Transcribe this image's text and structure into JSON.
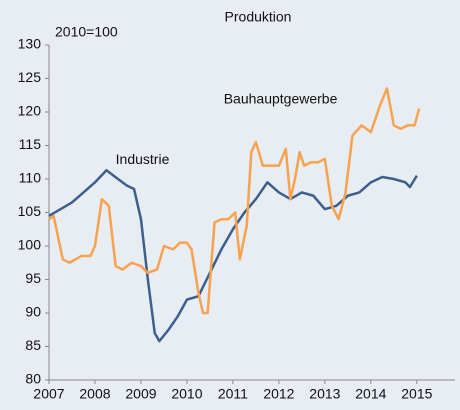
{
  "chart_data": {
    "type": "line",
    "title": "Produktion",
    "subtitle": "2010=100",
    "annotations": [
      {
        "text": "Industrie",
        "x": 2008.45,
        "y": 112.8
      },
      {
        "text": "Bauhauptgewerbe",
        "x": 2010.8,
        "y": 121.8
      }
    ],
    "xlim": [
      2007,
      2015.83
    ],
    "xticks": [
      2007,
      2008,
      2009,
      2010,
      2011,
      2012,
      2013,
      2014,
      2015
    ],
    "ylim": [
      80,
      130
    ],
    "yticks": [
      80,
      85,
      90,
      95,
      100,
      105,
      110,
      115,
      120,
      125,
      130
    ],
    "grid": false,
    "series": [
      {
        "name": "Industrie",
        "color": "#3d5f8c",
        "x": [
          2007,
          2007.25,
          2007.5,
          2007.75,
          2008,
          2008.25,
          2008.5,
          2008.7,
          2008.85,
          2009,
          2009.15,
          2009.3,
          2009.4,
          2009.6,
          2009.8,
          2010,
          2010.25,
          2010.5,
          2010.75,
          2011,
          2011.25,
          2011.5,
          2011.75,
          2012,
          2012.25,
          2012.5,
          2012.75,
          2013,
          2013.25,
          2013.5,
          2013.75,
          2014,
          2014.25,
          2014.5,
          2014.75,
          2014.85,
          2015
        ],
        "values": [
          104.5,
          105.5,
          106.5,
          108,
          109.5,
          111.3,
          110,
          109,
          108.5,
          104,
          95,
          87,
          85.8,
          87.5,
          89.5,
          92,
          92.5,
          96,
          99.5,
          102.5,
          105,
          107,
          109.5,
          108,
          107,
          108,
          107.5,
          105.5,
          106,
          107.5,
          108,
          109.5,
          110.3,
          110,
          109.5,
          108.8,
          110.5
        ]
      },
      {
        "name": "Bauhauptgewerbe",
        "color": "#f7a24e",
        "x": [
          2007,
          2007.1,
          2007.3,
          2007.45,
          2007.7,
          2007.9,
          2008,
          2008.15,
          2008.3,
          2008.45,
          2008.6,
          2008.8,
          2009,
          2009.15,
          2009.35,
          2009.5,
          2009.7,
          2009.85,
          2010,
          2010.1,
          2010.25,
          2010.35,
          2010.45,
          2010.6,
          2010.75,
          2010.9,
          2011.05,
          2011.15,
          2011.3,
          2011.4,
          2011.5,
          2011.65,
          2011.8,
          2012,
          2012.15,
          2012.25,
          2012.35,
          2012.45,
          2012.55,
          2012.7,
          2012.85,
          2013,
          2013.15,
          2013.3,
          2013.45,
          2013.6,
          2013.8,
          2014,
          2014.2,
          2014.35,
          2014.5,
          2014.65,
          2014.8,
          2014.95,
          2015.05
        ],
        "values": [
          104,
          104.5,
          98,
          97.5,
          98.5,
          98.5,
          100,
          107,
          106,
          97,
          96.5,
          97.5,
          97,
          96,
          96.5,
          100,
          99.5,
          100.5,
          100.5,
          99.5,
          93,
          90,
          90,
          103.5,
          104,
          104,
          105,
          98,
          103,
          114,
          115.5,
          112,
          112,
          112,
          114.5,
          107,
          110,
          114,
          112,
          112.5,
          112.5,
          113,
          106,
          104,
          108,
          116.5,
          118,
          117,
          121,
          123.5,
          118,
          117.5,
          118,
          118,
          120.5
        ]
      }
    ]
  }
}
